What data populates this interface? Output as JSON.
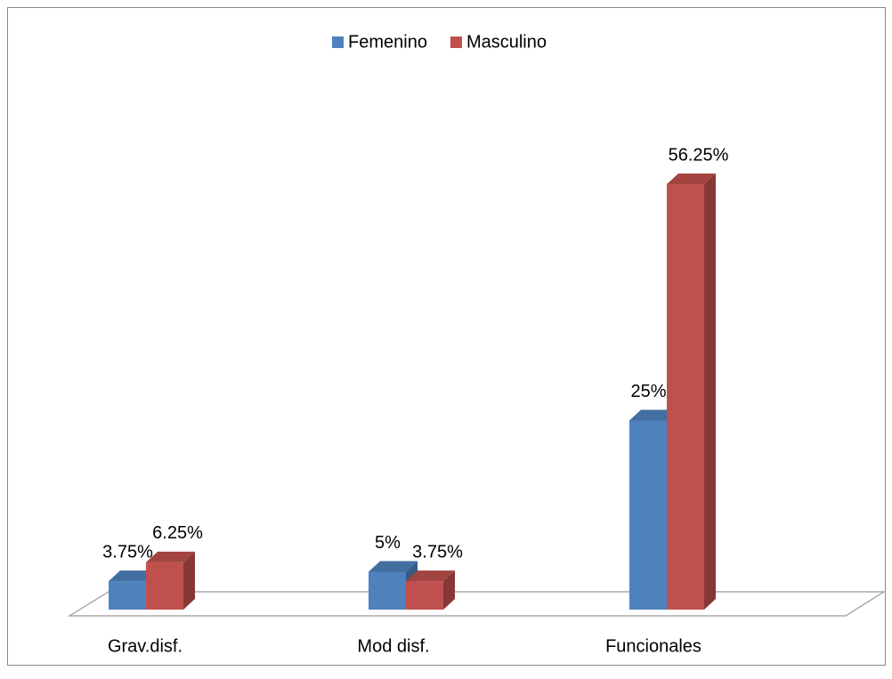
{
  "chart_data": {
    "type": "bar3d",
    "categories": [
      "Grav.disf.",
      "Mod disf.",
      "Funcionales"
    ],
    "series": [
      {
        "name": "Femenino",
        "color": "#4f81bd",
        "values": [
          3.75,
          5,
          25
        ],
        "value_labels": [
          "3.75%",
          "5%",
          "25%"
        ]
      },
      {
        "name": "Masculino",
        "color": "#c0504d",
        "values": [
          6.25,
          3.75,
          56.25
        ],
        "value_labels": [
          "6.25%",
          "3.75%",
          "56.25%"
        ]
      }
    ],
    "legend": "top"
  }
}
